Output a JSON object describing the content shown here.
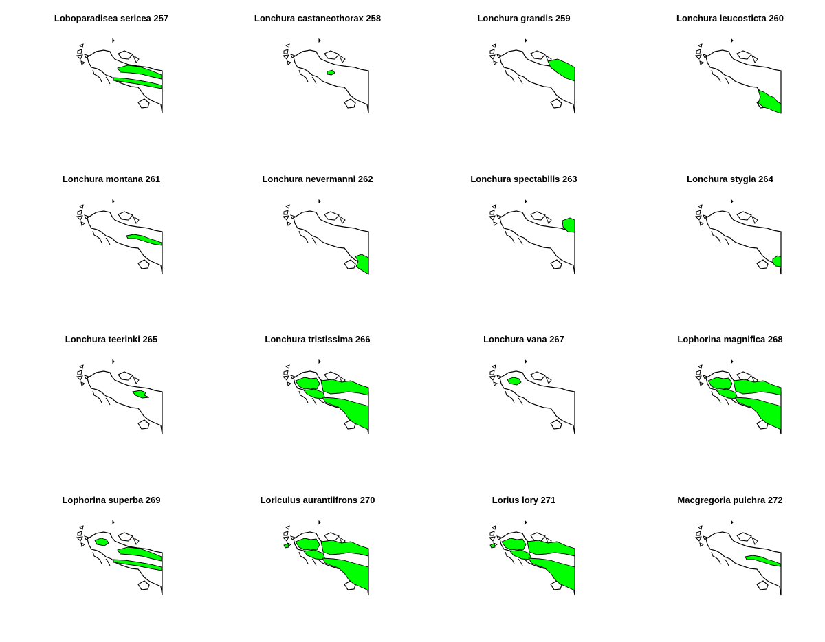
{
  "colors": {
    "range_fill": "#00ff00",
    "outline": "#000000",
    "background": "#ffffff"
  },
  "panels": [
    {
      "title": "Loboparadisea sericea 257",
      "ranges": [
        "central-range-band"
      ]
    },
    {
      "title": "Lonchura castaneothorax 258",
      "ranges": [
        "north-lake-patch"
      ]
    },
    {
      "title": "Lonchura grandis 259",
      "ranges": [
        "northeast-block"
      ]
    },
    {
      "title": "Lonchura leucosticta 260",
      "ranges": [
        "southeast-lowland"
      ]
    },
    {
      "title": "Lonchura montana 261",
      "ranges": [
        "central-highland-strip"
      ]
    },
    {
      "title": "Lonchura nevermanni 262",
      "ranges": [
        "southeast-corner"
      ]
    },
    {
      "title": "Lonchura spectabilis 263",
      "ranges": [
        "east-edge-patch"
      ]
    },
    {
      "title": "Lonchura stygia 264",
      "ranges": [
        "southeast-tip"
      ]
    },
    {
      "title": "Lonchura teerinki 265",
      "ranges": [
        "central-small-patch"
      ]
    },
    {
      "title": "Lonchura tristissima 266",
      "ranges": [
        "wide-west",
        "wide-north",
        "wide-south"
      ]
    },
    {
      "title": "Lonchura vana 267",
      "ranges": [
        "vogelkop-patch"
      ]
    },
    {
      "title": "Lophorina magnifica 268",
      "ranges": [
        "wide-west",
        "wide-north",
        "wide-south"
      ]
    },
    {
      "title": "Lophorina superba 269",
      "ranges": [
        "vogelkop-patch",
        "central-range-band"
      ]
    },
    {
      "title": "Loriculus aurantiifrons 270",
      "ranges": [
        "wide-west",
        "wide-north",
        "wide-south",
        "west-island-patch"
      ]
    },
    {
      "title": "Lorius lory 271",
      "ranges": [
        "wide-west",
        "wide-north",
        "wide-south",
        "west-island-patch"
      ]
    },
    {
      "title": "Macgregoria pulchra 272",
      "ranges": [
        "central-highland-strip"
      ]
    }
  ]
}
